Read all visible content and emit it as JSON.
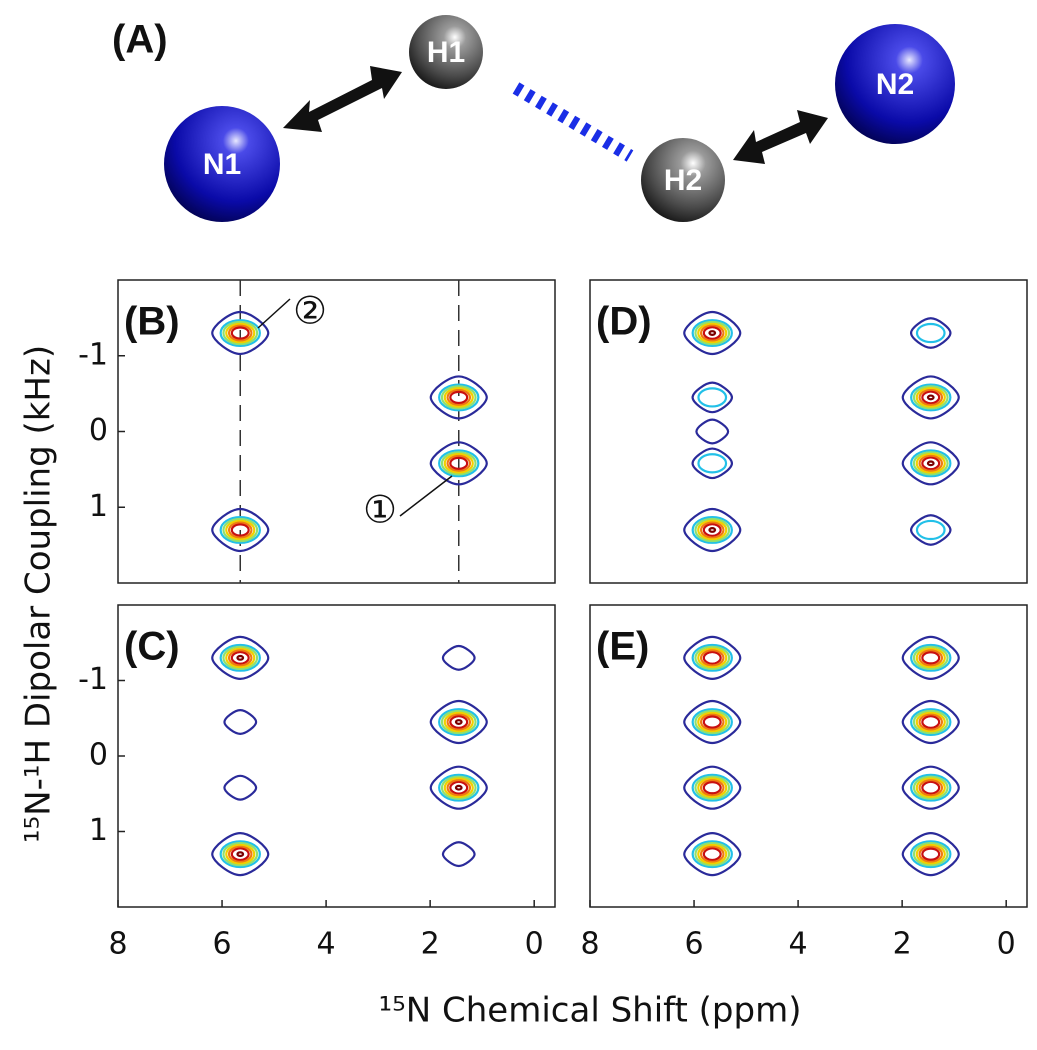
{
  "figure": {
    "panel_a": {
      "label": "(A)",
      "atoms": [
        "N1",
        "H1",
        "H2",
        "N2"
      ]
    },
    "xlabel": "¹⁵N Chemical Shift (ppm)",
    "ylabel": "¹⁵N-¹H Dipolar Coupling (kHz)"
  },
  "chart_data": [
    {
      "type": "contour",
      "label": "(B)",
      "xlim": [
        8,
        -0.4
      ],
      "ylim": [
        -2,
        2
      ],
      "yticks": [
        -1,
        0,
        1
      ],
      "guides": [
        5.65,
        1.45
      ],
      "annotations": [
        "②",
        "①"
      ],
      "peaks": [
        {
          "x": 5.65,
          "y": -1.3,
          "intensity": 0.7
        },
        {
          "x": 1.45,
          "y": -0.45,
          "intensity": 0.7
        },
        {
          "x": 1.45,
          "y": 0.42,
          "intensity": 0.7
        },
        {
          "x": 5.65,
          "y": 1.3,
          "intensity": 0.7
        }
      ]
    },
    {
      "type": "contour",
      "label": "(D)",
      "xlim": [
        8,
        -0.4
      ],
      "ylim": [
        -2,
        2
      ],
      "peaks": [
        {
          "x": 5.65,
          "y": -1.3,
          "intensity": 1
        },
        {
          "x": 5.65,
          "y": -0.45,
          "intensity": 0.3
        },
        {
          "x": 5.65,
          "y": 0,
          "intensity": 0.15
        },
        {
          "x": 5.65,
          "y": 0.42,
          "intensity": 0.3
        },
        {
          "x": 5.65,
          "y": 1.3,
          "intensity": 1
        },
        {
          "x": 1.45,
          "y": -1.3,
          "intensity": 0.3
        },
        {
          "x": 1.45,
          "y": -0.45,
          "intensity": 1
        },
        {
          "x": 1.45,
          "y": 0.42,
          "intensity": 1
        },
        {
          "x": 1.45,
          "y": 1.3,
          "intensity": 0.3
        }
      ]
    },
    {
      "type": "contour",
      "label": "(C)",
      "xlim": [
        8,
        -0.4
      ],
      "ylim": [
        -2,
        2
      ],
      "yticks": [
        -1,
        0,
        1
      ],
      "xticks": [
        8,
        6,
        4,
        2,
        0
      ],
      "peaks": [
        {
          "x": 5.65,
          "y": -1.3,
          "intensity": 1
        },
        {
          "x": 5.65,
          "y": -0.45,
          "intensity": 0.15
        },
        {
          "x": 5.65,
          "y": 0.42,
          "intensity": 0.15
        },
        {
          "x": 5.65,
          "y": 1.3,
          "intensity": 1
        },
        {
          "x": 1.45,
          "y": -1.3,
          "intensity": 0.15
        },
        {
          "x": 1.45,
          "y": -0.45,
          "intensity": 1
        },
        {
          "x": 1.45,
          "y": 0.42,
          "intensity": 1
        },
        {
          "x": 1.45,
          "y": 1.3,
          "intensity": 0.15
        }
      ]
    },
    {
      "type": "contour",
      "label": "(E)",
      "xlim": [
        8,
        -0.4
      ],
      "ylim": [
        -2,
        2
      ],
      "xticks": [
        8,
        6,
        4,
        2,
        0
      ],
      "peaks": [
        {
          "x": 5.65,
          "y": -1.3,
          "intensity": 0.85
        },
        {
          "x": 5.65,
          "y": -0.45,
          "intensity": 0.7
        },
        {
          "x": 5.65,
          "y": 0.42,
          "intensity": 0.7
        },
        {
          "x": 5.65,
          "y": 1.3,
          "intensity": 0.85
        },
        {
          "x": 1.45,
          "y": -1.3,
          "intensity": 0.7
        },
        {
          "x": 1.45,
          "y": -0.45,
          "intensity": 0.85
        },
        {
          "x": 1.45,
          "y": 0.42,
          "intensity": 0.85
        },
        {
          "x": 1.45,
          "y": 1.3,
          "intensity": 0.7
        }
      ]
    }
  ]
}
